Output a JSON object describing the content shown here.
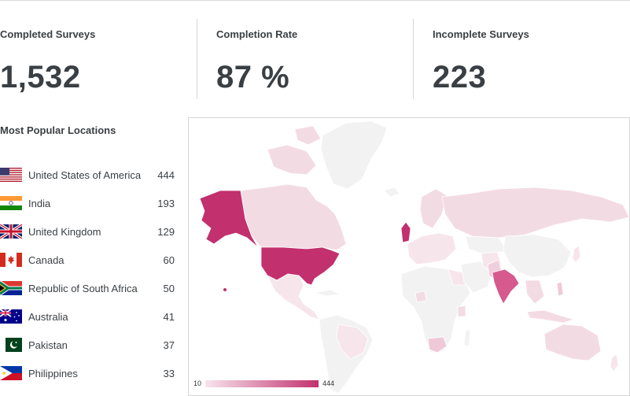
{
  "stats": [
    {
      "label": "Completed Surveys",
      "value": "1,532"
    },
    {
      "label": "Completion Rate",
      "value": "87 %"
    },
    {
      "label": "Incomplete Surveys",
      "value": "223"
    }
  ],
  "locations": {
    "title": "Most Popular Locations",
    "items": [
      {
        "name": "United States of America",
        "count": "444",
        "flag": "us-flag-icon"
      },
      {
        "name": "India",
        "count": "193",
        "flag": "india-flag-icon"
      },
      {
        "name": "United Kingdom",
        "count": "129",
        "flag": "uk-flag-icon"
      },
      {
        "name": "Canada",
        "count": "60",
        "flag": "canada-flag-icon"
      },
      {
        "name": "Republic of South Africa",
        "count": "50",
        "flag": "south-africa-flag-icon"
      },
      {
        "name": "Australia",
        "count": "41",
        "flag": "australia-flag-icon"
      },
      {
        "name": "Pakistan",
        "count": "37",
        "flag": "pakistan-flag-icon"
      },
      {
        "name": "Philippines",
        "count": "33",
        "flag": "philippines-flag-icon"
      }
    ]
  },
  "map": {
    "legend_min": "10",
    "legend_max": "444",
    "colors": {
      "low": "#f7e5ec",
      "high": "#c2306e",
      "none": "#f2f2f2",
      "border": "#ffffff"
    }
  }
}
